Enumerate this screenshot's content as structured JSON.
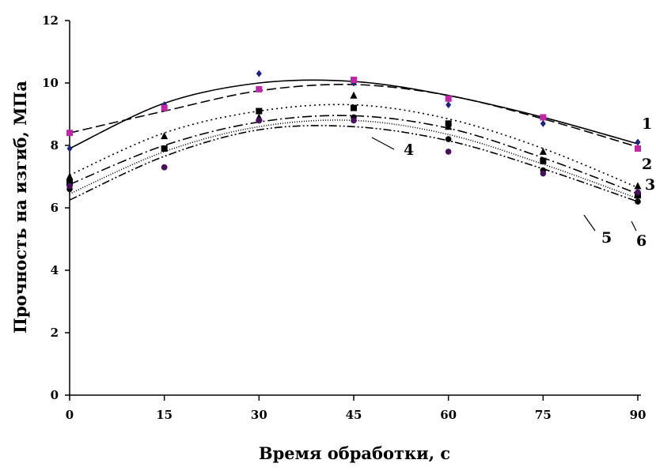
{
  "chart_data": {
    "type": "scatter",
    "xlabel": "Время обработки, с",
    "ylabel": "Прочность на изгиб, МПа",
    "x": [
      0,
      15,
      30,
      45,
      60,
      75,
      90
    ],
    "xlim": [
      0,
      90
    ],
    "ylim": [
      0,
      12
    ],
    "xticks": [
      "0",
      "15",
      "30",
      "45",
      "60",
      "75",
      "90"
    ],
    "yticks": [
      "0",
      "2",
      "4",
      "6",
      "8",
      "10",
      "12"
    ],
    "grid": false,
    "legend": "none",
    "series": [
      {
        "label": "1",
        "values": [
          7.9,
          9.3,
          10.3,
          10.0,
          9.3,
          8.7,
          8.1
        ],
        "trend": [
          7.9,
          9.35,
          10.0,
          10.05,
          9.6,
          8.9,
          8.05
        ],
        "color": "#1a237e",
        "marker": "diamond",
        "dash": ""
      },
      {
        "label": "2",
        "values": [
          8.4,
          9.2,
          9.8,
          10.1,
          9.5,
          8.9,
          7.9
        ],
        "trend": [
          8.4,
          9.1,
          9.75,
          9.95,
          9.6,
          8.85,
          7.95
        ],
        "color": "#c026a8",
        "marker": "square",
        "dash": "12 5"
      },
      {
        "label": "3",
        "values": [
          7.0,
          8.3,
          8.9,
          9.6,
          8.6,
          7.8,
          6.7
        ],
        "trend": [
          7.05,
          8.4,
          9.1,
          9.3,
          8.85,
          7.9,
          6.65
        ],
        "color": "#000000",
        "marker": "triangle",
        "dash": "2 4"
      },
      {
        "label": "4",
        "values": [
          6.8,
          7.9,
          9.1,
          9.2,
          8.7,
          7.5,
          6.4
        ],
        "trend": [
          6.75,
          8.0,
          8.75,
          8.95,
          8.55,
          7.6,
          6.45
        ],
        "color": "#000000",
        "marker": "square",
        "dash": "12 4 2 4"
      },
      {
        "label": "5",
        "values": [
          6.6,
          7.3,
          8.8,
          8.9,
          8.2,
          7.2,
          6.2
        ],
        "trend": [
          6.45,
          7.8,
          8.6,
          8.8,
          8.35,
          7.4,
          6.3
        ],
        "color": "#000000",
        "marker": "circle",
        "dash": "1 2"
      },
      {
        "label": "6",
        "values": [
          6.7,
          7.3,
          8.8,
          8.8,
          7.8,
          7.1,
          6.5
        ],
        "trend": [
          6.25,
          7.65,
          8.5,
          8.6,
          8.15,
          7.25,
          6.2
        ],
        "color": "#4a1060",
        "marker": "circle",
        "dash": "10 3 2 3 2 3"
      }
    ]
  }
}
